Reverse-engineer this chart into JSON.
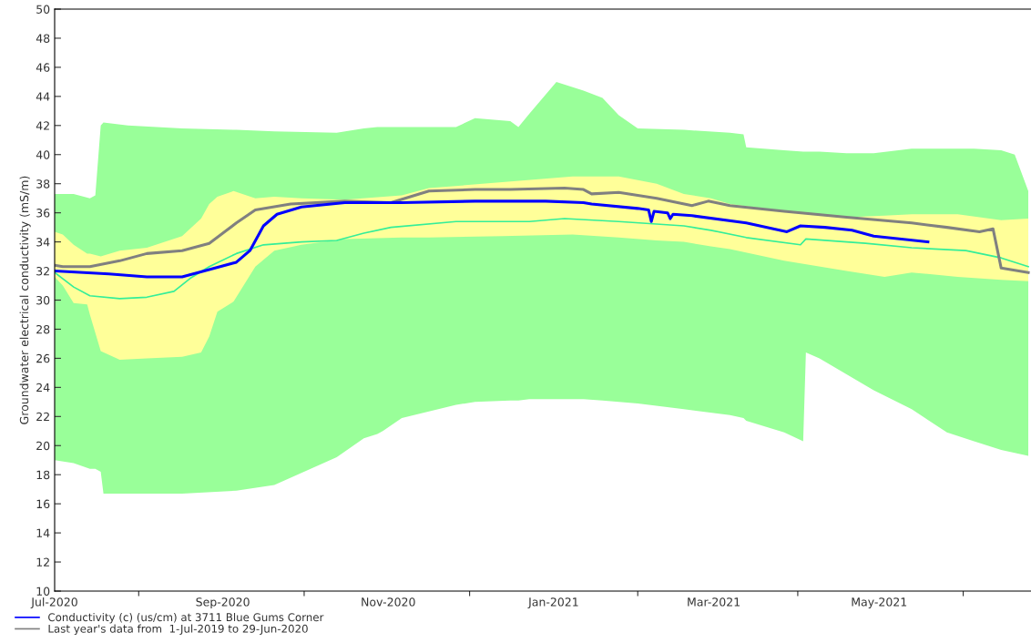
{
  "chart_data": {
    "type": "line",
    "ylabel": "Groundwater electrical conductivity (mS/m)",
    "xlim": [
      "2020-07-01",
      "2021-06-26"
    ],
    "ylim": [
      10,
      50
    ],
    "yticks": [
      10,
      12,
      14,
      16,
      18,
      20,
      22,
      24,
      26,
      28,
      30,
      32,
      34,
      36,
      38,
      40,
      42,
      44,
      46,
      48,
      50
    ],
    "xticks": [
      {
        "value": "2020-07-01",
        "label": "Jul-2020"
      },
      {
        "value": "2020-08-01",
        "label": null
      },
      {
        "value": "2020-09-01",
        "label": "Sep-2020"
      },
      {
        "value": "2020-10-01",
        "label": null
      },
      {
        "value": "2020-11-01",
        "label": "Nov-2020"
      },
      {
        "value": "2020-12-01",
        "label": null
      },
      {
        "value": "2021-01-01",
        "label": "Jan-2021"
      },
      {
        "value": "2021-02-01",
        "label": null
      },
      {
        "value": "2021-03-01",
        "label": "Mar-2021"
      },
      {
        "value": "2021-04-01",
        "label": null
      },
      {
        "value": "2021-05-01",
        "label": "May-2021"
      },
      {
        "value": "2021-06-01",
        "label": null
      }
    ],
    "grid": false,
    "legend": "bottom left",
    "series": [
      {
        "type": "line",
        "color": "#99ff99",
        "values": [
          null,
          null,
          null,
          null,
          null,
          null,
          null,
          null,
          null,
          null,
          null,
          null,
          null,
          null,
          null,
          null,
          null,
          null,
          null,
          null,
          null,
          null,
          null,
          null,
          null,
          null,
          null,
          null,
          null,
          null,
          null,
          null,
          null,
          null,
          null,
          null,
          null,
          null,
          null,
          null,
          null
        ],
        "x": [
          "2020-07-01",
          "2020-07-08",
          "2020-07-14",
          "2020-07-16",
          "2020-07-18",
          "2020-07-19",
          "2020-07-28",
          "2020-08-17",
          "2020-09-06",
          "2020-09-20",
          "2020-10-13",
          "2020-10-23",
          "2020-10-28",
          "2020-10-30",
          "2020-11-06",
          "2020-11-26",
          "2020-12-03",
          "2020-12-16",
          "2020-12-19",
          "2020-12-23",
          "2021-01-02",
          "2021-01-12",
          "2021-01-19",
          "2021-01-25",
          "2021-02-01",
          "2021-02-18",
          "2021-03-07",
          "2021-03-12",
          "2021-03-13",
          "2021-03-27",
          "2021-04-03",
          "2021-04-04",
          "2021-04-09",
          "2021-04-19",
          "2021-04-29",
          "2021-05-13",
          "2021-05-26",
          "2021-06-05",
          "2021-06-15",
          "2021-06-20",
          "2021-06-25"
        ],
        "upper": [
          37.3,
          37.3,
          37.0,
          37.2,
          42.0,
          42.2,
          42.0,
          41.8,
          41.7,
          41.6,
          41.5,
          41.8,
          41.9,
          41.9,
          41.9,
          41.9,
          42.5,
          42.3,
          41.9,
          42.8,
          45.0,
          44.4,
          43.9,
          42.7,
          41.8,
          41.7,
          41.5,
          41.4,
          40.5,
          40.3,
          40.2,
          40.2,
          40.2,
          40.1,
          40.1,
          40.4,
          40.4,
          40.4,
          40.3,
          40.0,
          37.5
        ],
        "lower": [
          19.0,
          18.8,
          18.4,
          18.4,
          18.2,
          16.7,
          16.7,
          16.7,
          16.9,
          17.3,
          19.2,
          20.5,
          20.8,
          21.0,
          21.9,
          22.8,
          23.0,
          23.1,
          23.1,
          23.2,
          23.2,
          23.2,
          23.1,
          23.0,
          22.9,
          22.5,
          22.1,
          21.9,
          21.7,
          20.9,
          20.3,
          26.4,
          26.0,
          24.9,
          23.8,
          22.5,
          20.9,
          20.3,
          19.7,
          19.5,
          19.3
        ]
      },
      {
        "type": "line",
        "color": "#ffff99",
        "values": [
          null,
          null,
          null,
          null,
          null,
          null,
          null,
          null,
          null,
          null,
          null,
          null,
          null,
          null,
          null,
          null,
          null,
          null,
          null,
          null,
          null,
          null,
          null,
          null,
          null,
          null,
          null,
          null,
          null,
          null,
          null,
          null,
          null
        ],
        "x": [
          "2020-07-01",
          "2020-07-04",
          "2020-07-08",
          "2020-07-13",
          "2020-07-14",
          "2020-07-18",
          "2020-07-25",
          "2020-08-04",
          "2020-08-17",
          "2020-08-24",
          "2020-08-27",
          "2020-08-30",
          "2020-09-05",
          "2020-09-13",
          "2020-09-20",
          "2020-09-30",
          "2020-10-16",
          "2020-11-06",
          "2020-11-16",
          "2020-12-13",
          "2021-01-08",
          "2021-01-25",
          "2021-02-08",
          "2021-02-18",
          "2021-02-28",
          "2021-03-07",
          "2021-03-27",
          "2021-04-19",
          "2021-05-03",
          "2021-05-13",
          "2021-05-30",
          "2021-06-15",
          "2021-06-25"
        ],
        "upper": [
          34.7,
          34.5,
          33.8,
          33.2,
          33.2,
          33.0,
          33.4,
          33.6,
          34.4,
          35.6,
          36.6,
          37.1,
          37.5,
          37.0,
          37.1,
          37.0,
          36.9,
          37.2,
          37.7,
          38.1,
          38.5,
          38.5,
          38.0,
          37.3,
          37.0,
          36.6,
          36.1,
          35.7,
          35.8,
          35.9,
          35.9,
          35.5,
          35.6
        ],
        "lower": [
          31.6,
          31.0,
          29.8,
          29.7,
          29.0,
          26.5,
          25.9,
          26.0,
          26.1,
          26.4,
          27.5,
          29.2,
          29.9,
          32.3,
          33.4,
          33.8,
          34.2,
          34.3,
          34.3,
          34.4,
          34.5,
          34.3,
          34.1,
          34.0,
          33.7,
          33.5,
          32.7,
          32.0,
          31.6,
          31.9,
          31.6,
          31.4,
          31.3
        ]
      },
      {
        "type": "line",
        "color": "#33ee99",
        "x": [
          "2020-07-01",
          "2020-07-08",
          "2020-07-14",
          "2020-07-25",
          "2020-08-04",
          "2020-08-14",
          "2020-08-20",
          "2020-08-27",
          "2020-09-06",
          "2020-09-16",
          "2020-09-30",
          "2020-10-13",
          "2020-10-23",
          "2020-11-02",
          "2020-11-26",
          "2020-12-23",
          "2021-01-05",
          "2021-01-25",
          "2021-02-18",
          "2021-02-28",
          "2021-03-13",
          "2021-04-02",
          "2021-04-04",
          "2021-04-26",
          "2021-05-13",
          "2021-06-02",
          "2021-06-15",
          "2021-06-25"
        ],
        "values": [
          31.9,
          30.9,
          30.3,
          30.1,
          30.2,
          30.6,
          31.5,
          32.3,
          33.2,
          33.8,
          34.0,
          34.1,
          34.6,
          35.0,
          35.4,
          35.4,
          35.6,
          35.4,
          35.1,
          34.8,
          34.3,
          33.8,
          34.2,
          33.9,
          33.6,
          33.4,
          32.9,
          32.3
        ]
      },
      {
        "type": "line",
        "color": "#808080",
        "name": "Last year's data from  1-Jul-2019 to 29-Jun-2020",
        "x": [
          "2020-07-01",
          "2020-07-04",
          "2020-07-14",
          "2020-07-25",
          "2020-08-04",
          "2020-08-17",
          "2020-08-27",
          "2020-09-06",
          "2020-09-13",
          "2020-09-26",
          "2020-10-16",
          "2020-11-02",
          "2020-11-16",
          "2020-12-03",
          "2020-12-16",
          "2021-01-05",
          "2021-01-12",
          "2021-01-15",
          "2021-01-25",
          "2021-02-08",
          "2021-02-21",
          "2021-02-27",
          "2021-03-07",
          "2021-03-27",
          "2021-04-19",
          "2021-05-13",
          "2021-05-26",
          "2021-06-07",
          "2021-06-12",
          "2021-06-15",
          "2021-06-25"
        ],
        "values": [
          32.4,
          32.3,
          32.3,
          32.7,
          33.2,
          33.4,
          33.9,
          35.3,
          36.2,
          36.6,
          36.8,
          36.7,
          37.5,
          37.6,
          37.6,
          37.7,
          37.6,
          37.3,
          37.4,
          37.0,
          36.5,
          36.8,
          36.5,
          36.1,
          35.7,
          35.3,
          35.0,
          34.7,
          34.9,
          32.2,
          31.9
        ]
      },
      {
        "type": "line",
        "color": "#0000ff",
        "name": "Conductivity (c) (us/cm) at 3711 Blue Gums Corner",
        "x": [
          "2020-07-01",
          "2020-07-21",
          "2020-08-04",
          "2020-08-17",
          "2020-08-27",
          "2020-09-06",
          "2020-09-11",
          "2020-09-16",
          "2020-09-21",
          "2020-09-30",
          "2020-10-16",
          "2020-11-06",
          "2020-12-03",
          "2020-12-29",
          "2021-01-12",
          "2021-01-15",
          "2021-02-01",
          "2021-02-05",
          "2021-02-06",
          "2021-02-07",
          "2021-02-12",
          "2021-02-13",
          "2021-02-14",
          "2021-02-21",
          "2021-03-13",
          "2021-03-28",
          "2021-04-02",
          "2021-04-11",
          "2021-04-21",
          "2021-04-29",
          "2021-05-19"
        ],
        "values": [
          32.0,
          31.8,
          31.6,
          31.6,
          32.1,
          32.6,
          33.4,
          35.1,
          35.9,
          36.4,
          36.7,
          36.7,
          36.8,
          36.8,
          36.7,
          36.6,
          36.3,
          36.2,
          35.4,
          36.1,
          36.0,
          35.6,
          35.9,
          35.8,
          35.3,
          34.7,
          35.1,
          35.0,
          34.8,
          34.4,
          34.0
        ]
      }
    ]
  }
}
